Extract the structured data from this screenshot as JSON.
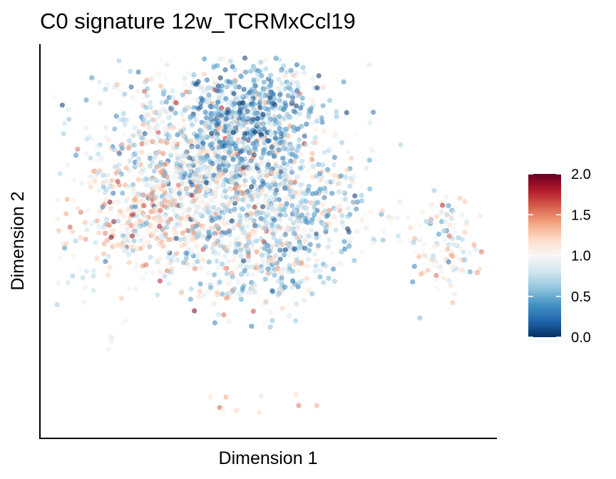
{
  "chart_data": {
    "type": "scatter",
    "title": "C0 signature 12w_TCRMxCcl19",
    "xlabel": "Dimension 1",
    "ylabel": "Dimension 2",
    "x_ticks_shown": false,
    "y_ticks_shown": false,
    "grid": false,
    "legend": {
      "type": "colorbar",
      "placement": "right",
      "ticks": [
        "2.0",
        "1.5",
        "1.0",
        "0.5",
        "0.0"
      ],
      "range": [
        0,
        2
      ],
      "colors": [
        "#67001f",
        "#b2182b",
        "#d6604d",
        "#f4a582",
        "#fddbc7",
        "#f7f7f7",
        "#d1e5f0",
        "#92c5de",
        "#4393c3",
        "#2166ac",
        "#053061"
      ]
    },
    "point_opacity": 0.55
  }
}
